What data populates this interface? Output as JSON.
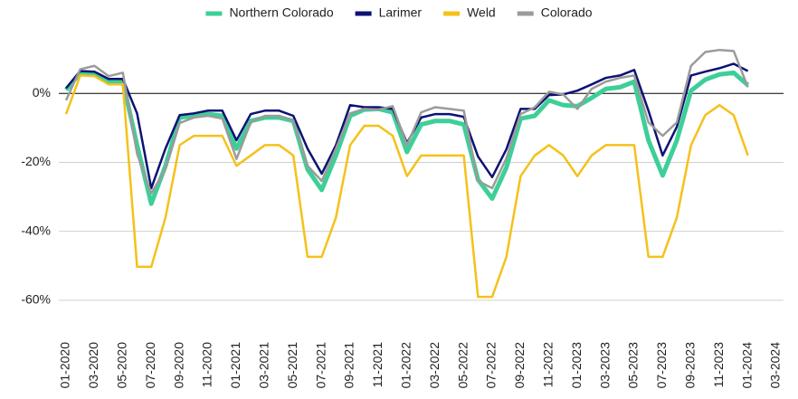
{
  "chart_data": {
    "type": "line",
    "categories": [
      "01-2020",
      null,
      "03-2020",
      null,
      "05-2020",
      null,
      "07-2020",
      null,
      "09-2020",
      null,
      "11-2020",
      null,
      "01-2021",
      null,
      "03-2021",
      null,
      "05-2021",
      null,
      "07-2021",
      null,
      "09-2021",
      null,
      "11-2021",
      null,
      "01-2022",
      null,
      "03-2022",
      null,
      "05-2022",
      null,
      "07-2022",
      null,
      "09-2022",
      null,
      "11-2022",
      null,
      "01-2023",
      null,
      "03-2023",
      null,
      "05-2023",
      null,
      "07-2023",
      null,
      "09-2023",
      null,
      "11-2023",
      null,
      "01-2024",
      null,
      "03-2024"
    ],
    "series": [
      {
        "name": "Northern Colorado",
        "color": "#3ecf98",
        "width": 5,
        "values": [
          1,
          6,
          5.5,
          3.5,
          3.5,
          -15,
          -32,
          -21,
          -7,
          -6.5,
          -6,
          -6.5,
          -16,
          -8,
          -7,
          -7,
          -8,
          -22,
          -28,
          -18,
          -6.5,
          -4.7,
          -4.5,
          -5.5,
          -17,
          -9,
          -8,
          -8,
          -9,
          -25,
          -30.5,
          -21.5,
          -7.3,
          -6.5,
          -2,
          -3.4,
          -3.7,
          -1.3,
          1.3,
          1.8,
          3.4,
          -13.6,
          -23.8,
          -13.6,
          0.8,
          4,
          5.5,
          6,
          2.4,
          null,
          null
        ]
      },
      {
        "name": "Larimer",
        "color": "#0d1273",
        "width": 2.5,
        "values": [
          1.5,
          6.5,
          6.3,
          4.2,
          4.2,
          -5.8,
          -27.5,
          -16,
          -6.3,
          -5.8,
          -5,
          -5,
          -13.6,
          -6,
          -5,
          -5,
          -6.5,
          -16,
          -23.3,
          -15,
          -3.4,
          -4,
          -4,
          -4.5,
          -14.4,
          -7,
          -6,
          -6,
          -6.8,
          -18.3,
          -24.3,
          -16.2,
          -4.5,
          -4.5,
          -0.5,
          -0.3,
          0.8,
          2.6,
          4.5,
          5.2,
          6.8,
          -5,
          -18,
          -9.7,
          5.2,
          6.3,
          7.3,
          8.6,
          6.5,
          null,
          null
        ]
      },
      {
        "name": "Weld",
        "color": "#f5c11a",
        "width": 2.5,
        "values": [
          -6,
          5.2,
          5,
          2.6,
          2.6,
          -50.3,
          -50.3,
          -36,
          -15,
          -12.3,
          -12.3,
          -12.3,
          -21,
          -18,
          -15,
          -15,
          -18,
          -47.4,
          -47.4,
          -36,
          -15,
          -9.4,
          -9.4,
          -12.3,
          -24,
          -18,
          -18,
          -18,
          -18,
          -59,
          -59,
          -47.4,
          -24,
          -18,
          -15,
          -18,
          -24,
          -18,
          -15,
          -15,
          -15,
          -47.4,
          -47.4,
          -36,
          -15,
          -6.3,
          -3.4,
          -6.3,
          -18,
          null,
          null
        ]
      },
      {
        "name": "Colorado",
        "color": "#9b9b9b",
        "width": 2.5,
        "values": [
          -2,
          7,
          8,
          5,
          6,
          -17.5,
          -29,
          -22,
          -8.6,
          -7,
          -6.5,
          -7.3,
          -19,
          -8.4,
          -6.5,
          -6.5,
          -7.8,
          -21,
          -25.4,
          -16,
          -5.8,
          -4.5,
          -4.7,
          -3.7,
          -15,
          -5.5,
          -4,
          -4.5,
          -5,
          -25.4,
          -27.5,
          -18.8,
          -6,
          -4,
          0.5,
          -0.3,
          -4.5,
          1.3,
          3.4,
          4.5,
          5.2,
          -8.4,
          -12.3,
          -8.4,
          8,
          12,
          12.6,
          12.3,
          1.8,
          null,
          null
        ]
      }
    ],
    "ylim": [
      -70,
      20
    ],
    "yticks": [
      {
        "value": 0,
        "label": "0%"
      },
      {
        "value": -20,
        "label": "-20%"
      },
      {
        "value": -40,
        "label": "-40%"
      },
      {
        "value": -60,
        "label": "-60%"
      }
    ],
    "grid": true,
    "legend": "top"
  }
}
